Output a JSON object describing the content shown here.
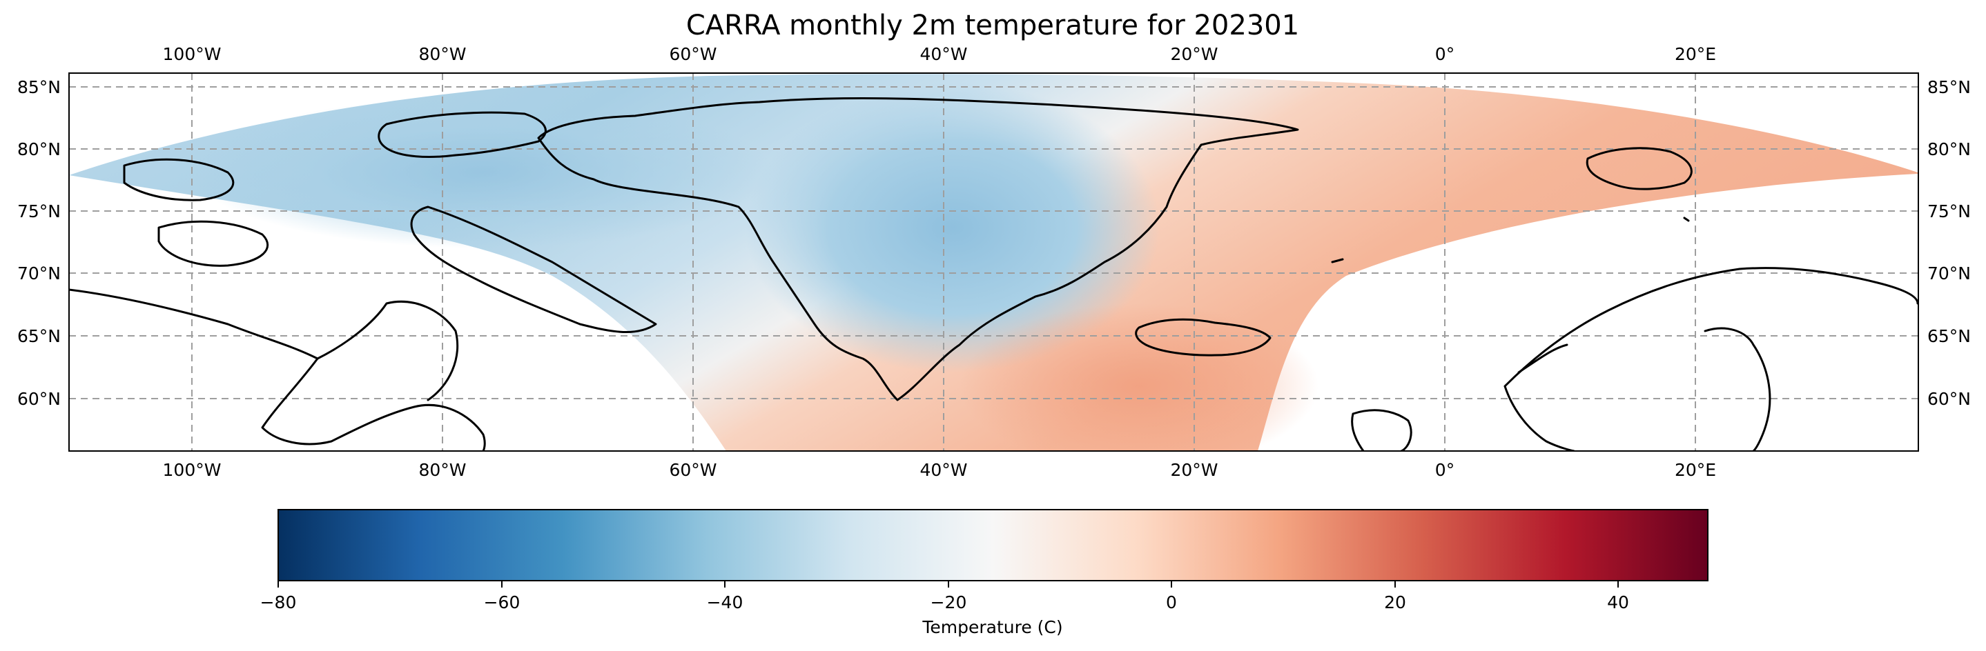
{
  "title": "CARRA monthly 2m temperature for 202301",
  "map": {
    "lon_labels": [
      "100°W",
      "80°W",
      "60°W",
      "40°W",
      "20°W",
      "0°",
      "20°E"
    ],
    "lat_labels": [
      "85°N",
      "80°N",
      "75°N",
      "70°N",
      "65°N",
      "60°N"
    ],
    "gridlines": true,
    "projection_extent": {
      "lon_min": -110,
      "lon_max": 38,
      "lat_min": 55.7,
      "lat_max": 86
    }
  },
  "colorbar": {
    "label": "Temperature (C)",
    "cmap": "RdBu_r",
    "range": [
      -80,
      48
    ],
    "ticks": [
      "−80",
      "−60",
      "−40",
      "−20",
      "0",
      "20",
      "40"
    ],
    "tick_values": [
      -80,
      -60,
      -40,
      -20,
      0,
      20,
      40
    ],
    "colors": [
      "#053061",
      "#2166ac",
      "#4393c3",
      "#92c5de",
      "#d1e5f0",
      "#f7f7f7",
      "#fddbc7",
      "#f4a582",
      "#d6604d",
      "#b2182b",
      "#67001f"
    ]
  },
  "field_colors": {
    "cold": "#97c6e0",
    "cool": "#c6dfee",
    "neutral": "#f3f3f3",
    "warm": "#f7c0a4",
    "hot": "#f2a283"
  }
}
